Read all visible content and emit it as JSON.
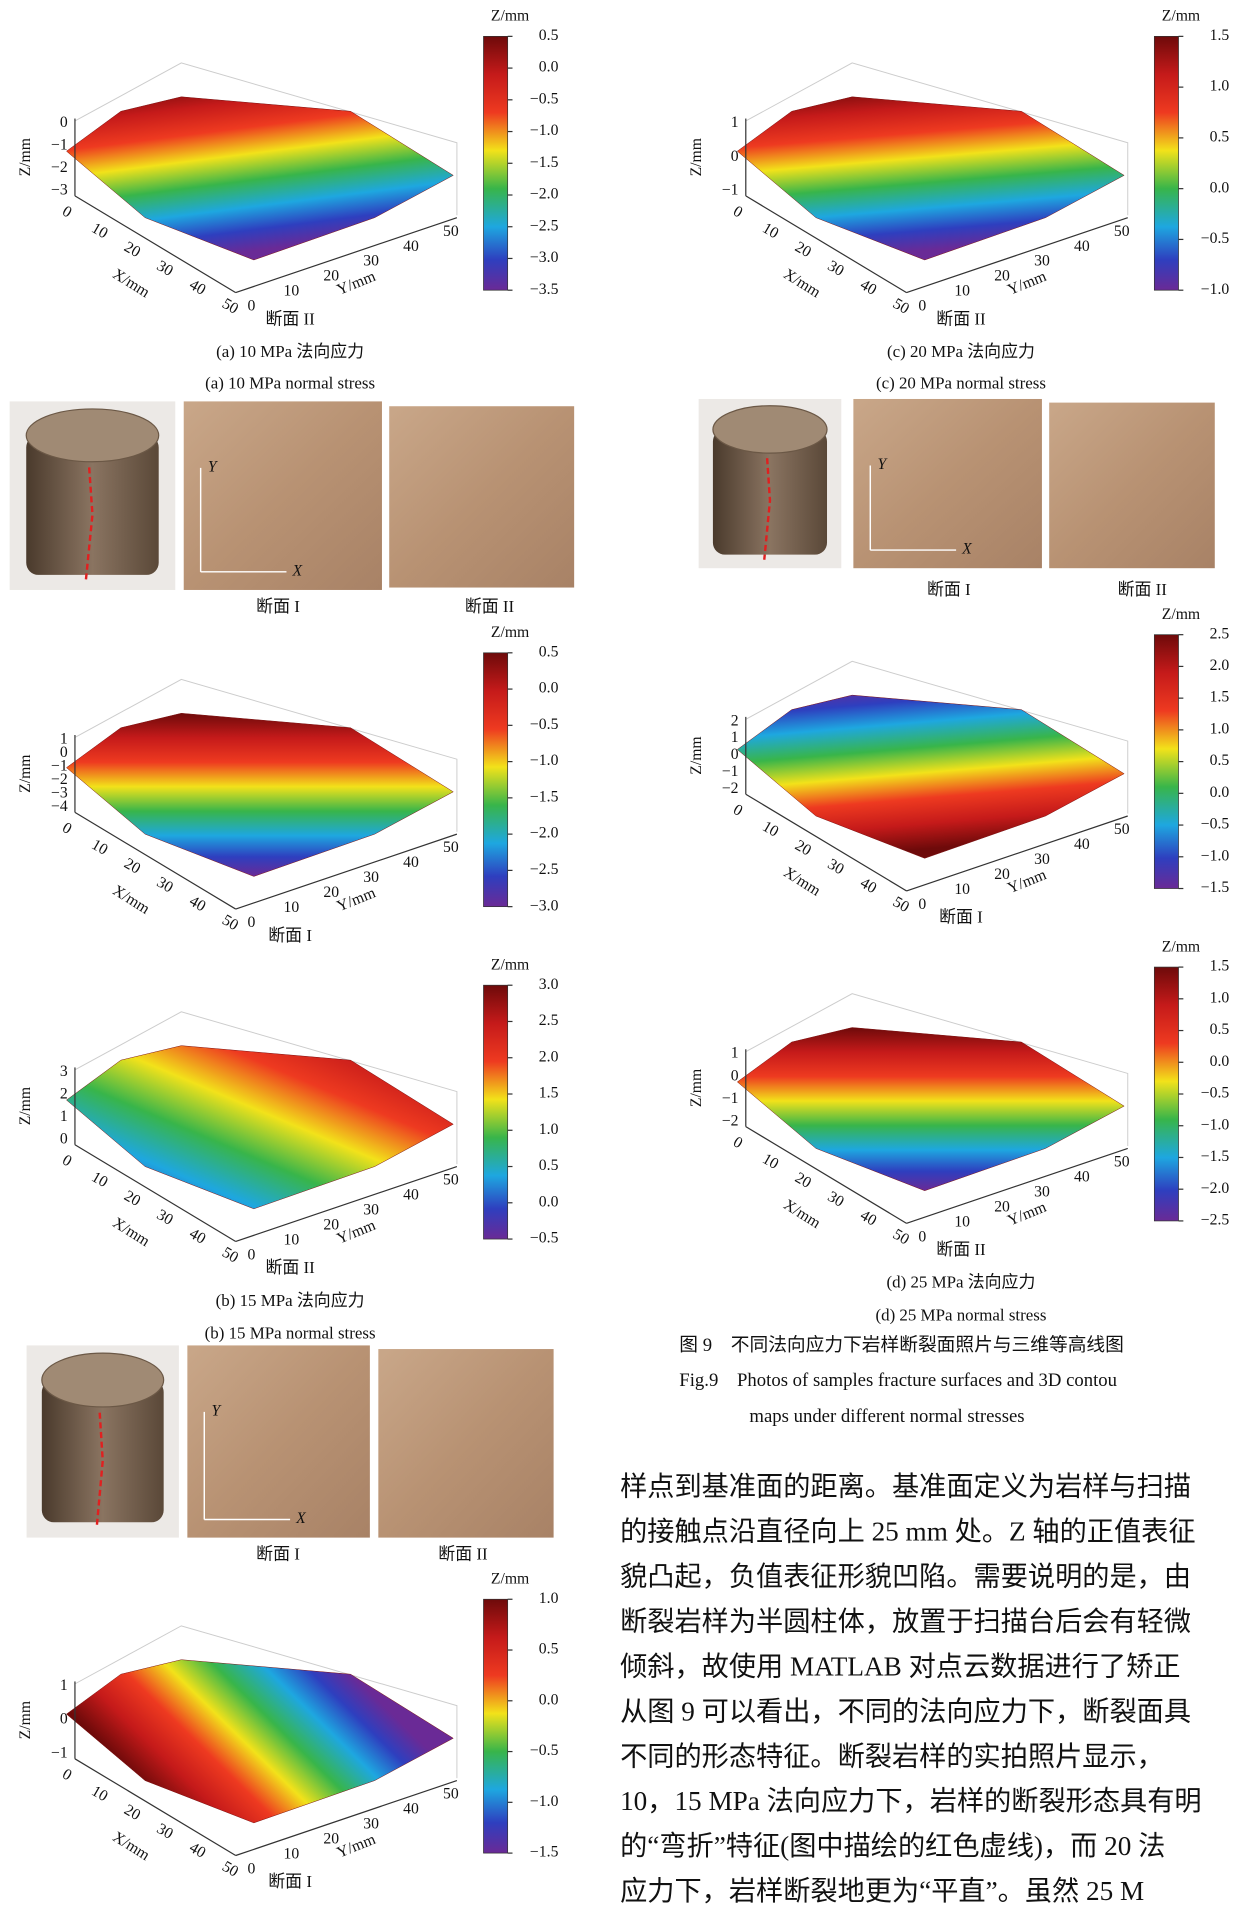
{
  "plots": [
    {
      "colorbar_title": "Z/mm",
      "colorbar_ticks": [
        "0.5",
        "0.0",
        "−0.5",
        "−1.0",
        "−1.5",
        "−2.0",
        "−2.5",
        "−3.0",
        "−3.5"
      ],
      "z_label": "Z/mm",
      "z_ticks": [
        "0",
        "−1",
        "−2",
        "−3"
      ],
      "x_label": "X/mm",
      "x_ticks": [
        "0",
        "10",
        "20",
        "30",
        "40",
        "50"
      ],
      "y_label": "Y/mm",
      "y_ticks": [
        "0",
        "10",
        "20",
        "30",
        "40",
        "50"
      ],
      "section": "断面 II"
    },
    {
      "colorbar_title": "Z/mm",
      "colorbar_ticks": [
        "0.5",
        "0.0",
        "−0.5",
        "−1.0",
        "−1.5",
        "−2.0",
        "−2.5",
        "−3.0"
      ],
      "z_label": "Z/mm",
      "z_ticks": [
        "1",
        "0",
        "−1",
        "−2",
        "−3",
        "−4"
      ],
      "x_label": "X/mm",
      "x_ticks": [
        "0",
        "10",
        "20",
        "30",
        "40",
        "50"
      ],
      "y_label": "Y/mm",
      "y_ticks": [
        "0",
        "10",
        "20",
        "30",
        "40",
        "50"
      ],
      "section": "断面 I"
    },
    {
      "colorbar_title": "Z/mm",
      "colorbar_ticks": [
        "3.0",
        "2.5",
        "2.0",
        "1.5",
        "1.0",
        "0.5",
        "0.0",
        "−0.5"
      ],
      "z_label": "Z/mm",
      "z_ticks": [
        "3",
        "2",
        "1",
        "0"
      ],
      "x_label": "X/mm",
      "x_ticks": [
        "0",
        "10",
        "20",
        "30",
        "40",
        "50"
      ],
      "y_label": "Y/mm",
      "y_ticks": [
        "0",
        "10",
        "20",
        "30",
        "40",
        "50"
      ],
      "section": "断面 II"
    },
    {
      "colorbar_title": "Z/mm",
      "colorbar_ticks": [
        "1.0",
        "0.5",
        "0.0",
        "−0.5",
        "−1.0",
        "−1.5"
      ],
      "z_label": "Z/mm",
      "z_ticks": [
        "1",
        "0",
        "−1"
      ],
      "x_label": "X/mm",
      "x_ticks": [
        "0",
        "10",
        "20",
        "30",
        "40",
        "50"
      ],
      "y_label": "Y/mm",
      "y_ticks": [
        "0",
        "10",
        "20",
        "30",
        "40",
        "50"
      ],
      "section": "断面 I"
    },
    {
      "colorbar_title": "Z/mm",
      "colorbar_ticks": [
        "1.5",
        "1.0",
        "0.5",
        "0.0",
        "−0.5",
        "−1.0"
      ],
      "z_label": "Z/mm",
      "z_ticks": [
        "1",
        "0",
        "−1"
      ],
      "x_label": "X/mm",
      "x_ticks": [
        "0",
        "10",
        "20",
        "30",
        "40",
        "50"
      ],
      "y_label": "Y/mm",
      "y_ticks": [
        "0",
        "10",
        "20",
        "30",
        "40",
        "50"
      ],
      "section": "断面 II"
    },
    {
      "colorbar_title": "Z/mm",
      "colorbar_ticks": [
        "2.5",
        "2.0",
        "1.5",
        "1.0",
        "0.5",
        "0.0",
        "−0.5",
        "−1.0",
        "−1.5"
      ],
      "z_label": "Z/mm",
      "z_ticks": [
        "2",
        "1",
        "0",
        "−1",
        "−2"
      ],
      "x_label": "X/mm",
      "x_ticks": [
        "0",
        "10",
        "20",
        "30",
        "40",
        "50"
      ],
      "y_label": "Y/mm",
      "y_ticks": [
        "0",
        "10",
        "20",
        "30",
        "40",
        "50"
      ],
      "section": "断面 I"
    },
    {
      "colorbar_title": "Z/mm",
      "colorbar_ticks": [
        "1.5",
        "1.0",
        "0.5",
        "0.0",
        "−0.5",
        "−1.0",
        "−1.5",
        "−2.0",
        "−2.5"
      ],
      "z_label": "Z/mm",
      "z_ticks": [
        "1",
        "0",
        "−1",
        "−2"
      ],
      "x_label": "X/mm",
      "x_ticks": [
        "0",
        "10",
        "20",
        "30",
        "40",
        "50"
      ],
      "y_label": "Y/mm",
      "y_ticks": [
        "0",
        "10",
        "20",
        "30",
        "40",
        "50"
      ],
      "section": "断面 II"
    }
  ],
  "photos": [
    {
      "y_axis": "Y",
      "x_axis": "X",
      "label_1": "断面 I",
      "label_2": "断面 II"
    },
    {
      "y_axis": "Y",
      "x_axis": "X",
      "label_1": "断面 I",
      "label_2": "断面 II"
    },
    {
      "y_axis": "Y",
      "x_axis": "X",
      "label_1": "断面 I",
      "label_2": "断面 II"
    }
  ],
  "captions": [
    {
      "cn": "(a) 10 MPa 法向应力",
      "en": "(a) 10 MPa normal stress"
    },
    {
      "cn": "(b) 15 MPa 法向应力",
      "en": "(b) 15 MPa normal stress"
    },
    {
      "cn": "(c) 20 MPa 法向应力",
      "en": "(c) 20 MPa normal stress"
    },
    {
      "cn": "(d) 25 MPa 法向应力",
      "en": "(d) 25 MPa normal stress"
    }
  ],
  "figure_caption": {
    "cn": "图 9　不同法向应力下岩样断裂面照片与三维等高线图",
    "en_1": "Fig.9　Photos of samples fracture surfaces and 3D contou",
    "en_2": "maps under different normal stresses"
  },
  "body_lines": [
    "样点到基准面的距离。基准面定义为岩样与扫描",
    "的接触点沿直径向上 25 mm 处。Z 轴的正值表征",
    "貌凸起，负值表征形貌凹陷。需要说明的是，由",
    "断裂岩样为半圆柱体，放置于扫描台后会有轻微",
    "倾斜，故使用 MATLAB 对点云数据进行了矫正",
    "从图 9 可以看出，不同的法向应力下，断裂面具",
    "不同的形态特征。断裂岩样的实拍照片显示，",
    "10，15 MPa 法向应力下，岩样的断裂形态具有明",
    "的“弯折”特征(图中描绘的红色虚线)，而 20 法",
    "应力下，岩样断裂地更为“平直”。虽然 25 M"
  ]
}
